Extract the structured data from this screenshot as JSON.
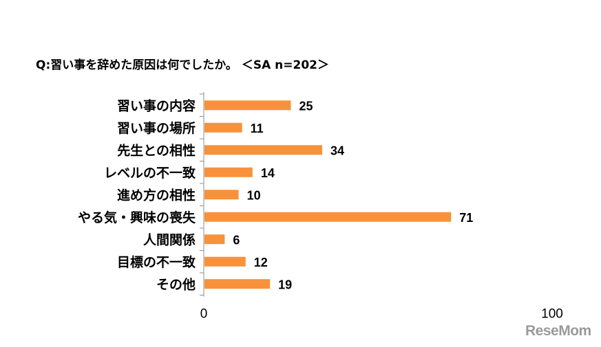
{
  "chart_data": {
    "type": "bar",
    "orientation": "horizontal",
    "title": "Q:習い事を辞めた原因は何でしたか。 ＜SA n=202＞",
    "categories": [
      "習い事の内容",
      "習い事の場所",
      "先生との相性",
      "レベルの不一致",
      "進め方の相性",
      "やる気・興味の喪失",
      "人間関係",
      "目標の不一致",
      "その他"
    ],
    "values": [
      25,
      11,
      34,
      14,
      10,
      71,
      6,
      12,
      19
    ],
    "value_labels": [
      "25",
      "11",
      "34",
      "14",
      "10",
      "71",
      "6",
      "12",
      "19"
    ],
    "xlim": [
      0,
      100
    ],
    "ticks": [
      "0",
      "100"
    ],
    "bar_color": "#F7923A",
    "grid": false,
    "legend": "none"
  },
  "watermark": "ReseMom"
}
